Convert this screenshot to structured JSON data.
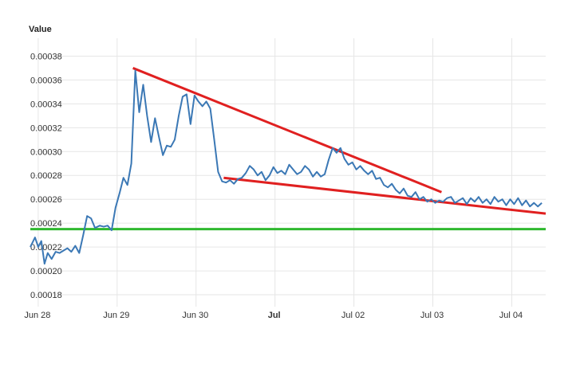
{
  "chart_data": {
    "type": "line",
    "ylabel": "Value",
    "ylim": [
      0.00017,
      0.000395
    ],
    "xlim": [
      -0.1,
      6.43
    ],
    "y_ticks": [
      {
        "value": 0.00018,
        "label": "0.00018"
      },
      {
        "value": 0.0002,
        "label": "0.00020"
      },
      {
        "value": 0.00022,
        "label": "0.00022"
      },
      {
        "value": 0.00024,
        "label": "0.00024"
      },
      {
        "value": 0.00026,
        "label": "0.00026"
      },
      {
        "value": 0.00028,
        "label": "0.00028"
      },
      {
        "value": 0.0003,
        "label": "0.00030"
      },
      {
        "value": 0.00032,
        "label": "0.00032"
      },
      {
        "value": 0.00034,
        "label": "0.00034"
      },
      {
        "value": 0.00036,
        "label": "0.00036"
      },
      {
        "value": 0.00038,
        "label": "0.00038"
      }
    ],
    "x_ticks": [
      {
        "value": 0,
        "label": "Jun 28",
        "bold": false
      },
      {
        "value": 1,
        "label": "Jun 29",
        "bold": false
      },
      {
        "value": 2,
        "label": "Jun 30",
        "bold": false
      },
      {
        "value": 3,
        "label": "Jul",
        "bold": true
      },
      {
        "value": 4,
        "label": "Jul 02",
        "bold": false
      },
      {
        "value": 5,
        "label": "Jul 03",
        "bold": false
      },
      {
        "value": 6,
        "label": "Jul 04",
        "bold": false
      }
    ],
    "grid": true,
    "series": [
      {
        "color": "#3b78b5",
        "x": [
          -0.1,
          -0.04,
          0.0,
          0.04,
          0.08,
          0.12,
          0.17,
          0.22,
          0.27,
          0.32,
          0.37,
          0.42,
          0.47,
          0.52,
          0.57,
          0.62,
          0.67,
          0.72,
          0.78,
          0.83,
          0.88,
          0.93,
          0.98,
          1.03,
          1.08,
          1.13,
          1.18,
          1.23,
          1.28,
          1.33,
          1.38,
          1.43,
          1.48,
          1.53,
          1.58,
          1.63,
          1.68,
          1.73,
          1.78,
          1.83,
          1.88,
          1.93,
          1.98,
          2.03,
          2.08,
          2.13,
          2.18,
          2.23,
          2.28,
          2.33,
          2.38,
          2.43,
          2.48,
          2.53,
          2.58,
          2.63,
          2.68,
          2.73,
          2.78,
          2.83,
          2.88,
          2.93,
          2.98,
          3.03,
          3.08,
          3.13,
          3.18,
          3.23,
          3.28,
          3.33,
          3.38,
          3.43,
          3.48,
          3.53,
          3.58,
          3.63,
          3.68,
          3.73,
          3.78,
          3.83,
          3.88,
          3.93,
          3.98,
          4.03,
          4.08,
          4.13,
          4.18,
          4.23,
          4.28,
          4.33,
          4.38,
          4.43,
          4.48,
          4.53,
          4.58,
          4.63,
          4.68,
          4.73,
          4.78,
          4.83,
          4.88,
          4.93,
          4.98,
          5.03,
          5.08,
          5.13,
          5.18,
          5.23,
          5.28,
          5.33,
          5.38,
          5.43,
          5.48,
          5.53,
          5.58,
          5.63,
          5.68,
          5.73,
          5.78,
          5.83,
          5.88,
          5.93,
          5.98,
          6.03,
          6.08,
          6.13,
          6.18,
          6.23,
          6.28,
          6.33,
          6.38
        ],
        "values": [
          0.00022,
          0.000228,
          0.00022,
          0.000225,
          0.000206,
          0.000215,
          0.00021,
          0.000216,
          0.000215,
          0.000217,
          0.000219,
          0.000216,
          0.000221,
          0.000215,
          0.00023,
          0.000246,
          0.000244,
          0.000236,
          0.000238,
          0.000237,
          0.000238,
          0.000234,
          0.000253,
          0.000265,
          0.000278,
          0.000272,
          0.00029,
          0.000368,
          0.000333,
          0.000356,
          0.00033,
          0.000308,
          0.000328,
          0.000312,
          0.000297,
          0.000305,
          0.000304,
          0.00031,
          0.00033,
          0.000346,
          0.000348,
          0.000323,
          0.000347,
          0.000342,
          0.000338,
          0.000342,
          0.000336,
          0.00031,
          0.000283,
          0.000275,
          0.000274,
          0.000276,
          0.000273,
          0.000277,
          0.000278,
          0.000282,
          0.000288,
          0.000285,
          0.00028,
          0.000283,
          0.000276,
          0.00028,
          0.000287,
          0.000282,
          0.000284,
          0.000281,
          0.000289,
          0.000285,
          0.000281,
          0.000283,
          0.000288,
          0.000285,
          0.000279,
          0.000283,
          0.000279,
          0.000281,
          0.000293,
          0.000303,
          0.000299,
          0.000303,
          0.000294,
          0.000289,
          0.000291,
          0.000285,
          0.000288,
          0.000284,
          0.000281,
          0.000284,
          0.000277,
          0.000278,
          0.000272,
          0.00027,
          0.000273,
          0.000268,
          0.000265,
          0.000269,
          0.000263,
          0.000262,
          0.000266,
          0.00026,
          0.000262,
          0.000258,
          0.00026,
          0.000257,
          0.000259,
          0.000258,
          0.000261,
          0.000262,
          0.000257,
          0.000259,
          0.000261,
          0.000256,
          0.000261,
          0.000258,
          0.000262,
          0.000257,
          0.00026,
          0.000256,
          0.000262,
          0.000258,
          0.00026,
          0.000255,
          0.00026,
          0.000256,
          0.000261,
          0.000255,
          0.000259,
          0.000254,
          0.000257,
          0.000254,
          0.000257
        ]
      }
    ],
    "trendlines": [
      {
        "color": "#e02020",
        "from": [
          1.2,
          0.00037
        ],
        "to": [
          5.11,
          0.000266
        ]
      },
      {
        "color": "#e02020",
        "from": [
          2.35,
          0.000278
        ],
        "to": [
          6.43,
          0.000248
        ]
      },
      {
        "color": "#2eb82e",
        "from": [
          -0.1,
          0.000235
        ],
        "to": [
          6.43,
          0.000235
        ]
      }
    ]
  }
}
